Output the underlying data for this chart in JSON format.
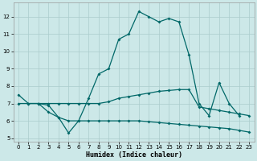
{
  "xlabel": "Humidex (Indice chaleur)",
  "bg_color": "#cce8e8",
  "line_color": "#006868",
  "grid_color": "#aacccc",
  "xlim": [
    -0.5,
    23.5
  ],
  "ylim": [
    4.8,
    12.8
  ],
  "yticks": [
    5,
    6,
    7,
    8,
    9,
    10,
    11,
    12
  ],
  "xticks": [
    0,
    1,
    2,
    3,
    4,
    5,
    6,
    7,
    8,
    9,
    10,
    11,
    12,
    13,
    14,
    15,
    16,
    17,
    18,
    19,
    20,
    21,
    22,
    23
  ],
  "line1_x": [
    0,
    1,
    2,
    3,
    4,
    5,
    6,
    7,
    8,
    9,
    10,
    11,
    12,
    13,
    14,
    15,
    16,
    17,
    18,
    19,
    20,
    21,
    22
  ],
  "line1_y": [
    7.5,
    7.0,
    7.0,
    6.5,
    6.2,
    5.3,
    6.0,
    7.3,
    8.7,
    9.0,
    10.7,
    11.0,
    12.3,
    12.0,
    11.7,
    11.9,
    11.7,
    9.8,
    7.0,
    6.3,
    8.2,
    7.0,
    6.3
  ],
  "line2_x": [
    0,
    1,
    2,
    3,
    4,
    5,
    6,
    7,
    8,
    9,
    10,
    11,
    12,
    13,
    14,
    15,
    16,
    17,
    18,
    19,
    20,
    21,
    22,
    23
  ],
  "line2_y": [
    7.0,
    7.0,
    7.0,
    7.0,
    7.0,
    7.0,
    7.0,
    7.0,
    7.0,
    7.1,
    7.3,
    7.4,
    7.5,
    7.6,
    7.7,
    7.75,
    7.8,
    7.8,
    6.8,
    6.7,
    6.6,
    6.5,
    6.4,
    6.3
  ],
  "line3_x": [
    2,
    3,
    4,
    5,
    6,
    7,
    8,
    9,
    10,
    11,
    12,
    13,
    14,
    15,
    16,
    17,
    18,
    19,
    20,
    21,
    22,
    23
  ],
  "line3_y": [
    7.0,
    6.9,
    6.2,
    6.0,
    6.0,
    6.0,
    6.0,
    6.0,
    6.0,
    6.0,
    6.0,
    5.95,
    5.9,
    5.85,
    5.8,
    5.75,
    5.7,
    5.65,
    5.6,
    5.55,
    5.45,
    5.35
  ]
}
